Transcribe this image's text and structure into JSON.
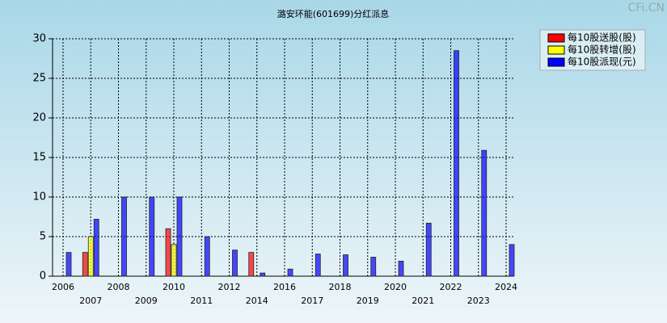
{
  "chart_data": {
    "type": "bar",
    "title": "潞安环能(601699)分红派息",
    "watermark": "CFi.CN",
    "categories": [
      "2006",
      "2007",
      "2008",
      "2009",
      "2010",
      "2011",
      "2012",
      "2014",
      "2016",
      "2017",
      "2018",
      "2019",
      "2020",
      "2021",
      "2022",
      "2023",
      "2024"
    ],
    "series": [
      {
        "name": "每10股送股(股)",
        "color": "#ff0000",
        "values": [
          null,
          3,
          null,
          null,
          6,
          null,
          null,
          3,
          null,
          null,
          null,
          null,
          null,
          null,
          null,
          null,
          null
        ]
      },
      {
        "name": "每10股转增(股)",
        "color": "#ffff00",
        "values": [
          null,
          5,
          null,
          null,
          4,
          null,
          null,
          null,
          null,
          null,
          null,
          null,
          null,
          null,
          null,
          null,
          null
        ]
      },
      {
        "name": "每10股派现(元)",
        "color": "#0000ff",
        "values": [
          3,
          7.2,
          10,
          10,
          10,
          5,
          3.3,
          0.4,
          0.9,
          2.8,
          2.7,
          2.4,
          1.9,
          6.7,
          28.5,
          15.9,
          4
        ]
      }
    ],
    "ylim": [
      0,
      30
    ],
    "yticks": [
      0,
      5,
      10,
      15,
      20,
      25,
      30
    ],
    "grid": true,
    "legend": "top-right"
  }
}
